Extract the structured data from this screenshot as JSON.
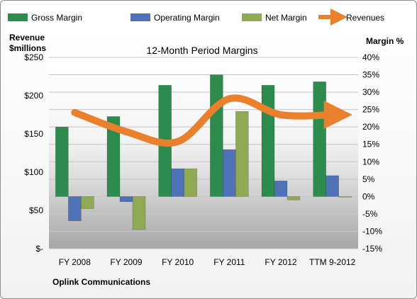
{
  "chart_data": {
    "type": "bar",
    "title": "12-Month Period Margins",
    "company": "Oplink Communications",
    "left_axis_label_line1": "Revenue",
    "left_axis_label_line2": "$millions",
    "right_axis_label": "Margin %",
    "categories": [
      "FY 2008",
      "FY 2009",
      "FY 2010",
      "FY 2011",
      "FY 2012",
      "TTM 9-2012"
    ],
    "left_axis": {
      "range": [
        0,
        250
      ],
      "ticks": [
        "$-",
        "$50",
        "$100",
        "$150",
        "$200",
        "$250"
      ]
    },
    "right_axis": {
      "range": [
        -15,
        40
      ],
      "ticks": [
        "-15%",
        "-10%",
        "-5%",
        "0%",
        "5%",
        "10%",
        "15%",
        "20%",
        "25%",
        "30%",
        "35%",
        "40%"
      ]
    },
    "bar_series": [
      {
        "name": "Gross Margin",
        "color": "#2e8b4e",
        "values": [
          20,
          23,
          32,
          35,
          32,
          33
        ]
      },
      {
        "name": "Operating Margin",
        "color": "#4f72b6",
        "values": [
          -7,
          -1.5,
          8,
          13.5,
          4.5,
          6
        ]
      },
      {
        "name": "Net Margin",
        "color": "#8faa52",
        "values": [
          -3.5,
          -9.5,
          8,
          24.5,
          -1,
          0
        ]
      }
    ],
    "line_series": {
      "name": "Revenues",
      "color": "#ea7f2c",
      "values": [
        178,
        153,
        140,
        196,
        175,
        175
      ]
    },
    "legend_position": "top",
    "grid": true
  }
}
